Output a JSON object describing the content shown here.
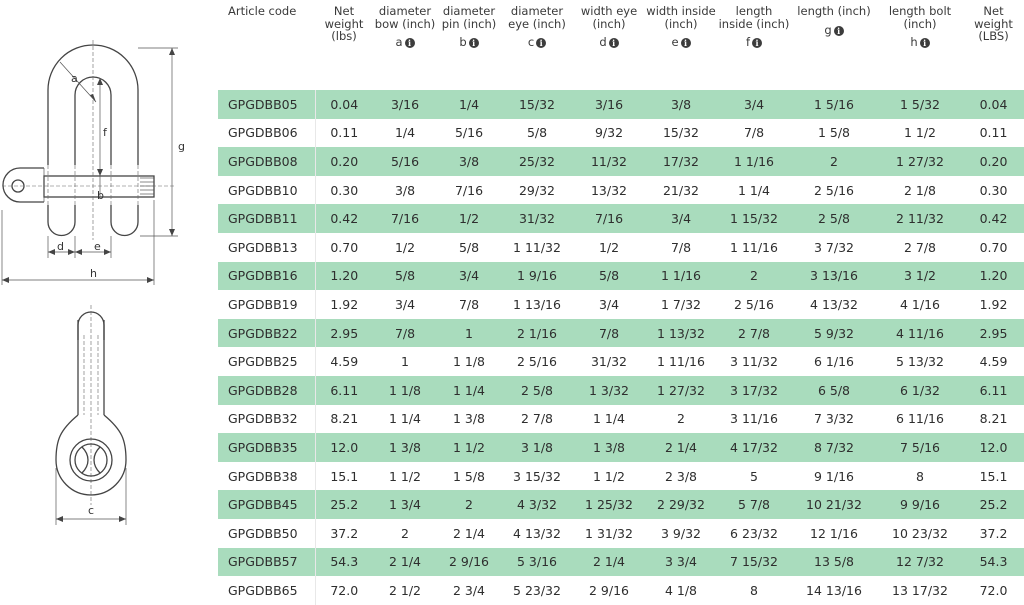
{
  "diagram": {
    "labels": {
      "a": "a",
      "b": "b",
      "c": "c",
      "d": "d",
      "e": "e",
      "f": "f",
      "g": "g",
      "h": "h"
    }
  },
  "table": {
    "columns": [
      {
        "label": "Article code",
        "symbol": ""
      },
      {
        "label": "Net weight (lbs)",
        "symbol": ""
      },
      {
        "label": "diameter bow (inch)",
        "symbol": "a"
      },
      {
        "label": "diameter pin (inch)",
        "symbol": "b"
      },
      {
        "label": "diameter eye (inch)",
        "symbol": "c"
      },
      {
        "label": "width eye (inch)",
        "symbol": "d"
      },
      {
        "label": "width inside (inch)",
        "symbol": "e"
      },
      {
        "label": "length inside (inch)",
        "symbol": "f"
      },
      {
        "label": "length (inch)",
        "symbol": "g"
      },
      {
        "label": "length bolt (inch)",
        "symbol": "h"
      },
      {
        "label": "Net weight (LBS)",
        "symbol": ""
      }
    ],
    "rows": [
      [
        "GPGDBB05",
        "0.04",
        "3/16",
        "1/4",
        "15/32",
        "3/16",
        "3/8",
        "3/4",
        "1 5/16",
        "1 5/32",
        "0.04"
      ],
      [
        "GPGDBB06",
        "0.11",
        "1/4",
        "5/16",
        "5/8",
        "9/32",
        "15/32",
        "7/8",
        "1 5/8",
        "1 1/2",
        "0.11"
      ],
      [
        "GPGDBB08",
        "0.20",
        "5/16",
        "3/8",
        "25/32",
        "11/32",
        "17/32",
        "1 1/16",
        "2",
        "1 27/32",
        "0.20"
      ],
      [
        "GPGDBB10",
        "0.30",
        "3/8",
        "7/16",
        "29/32",
        "13/32",
        "21/32",
        "1 1/4",
        "2 5/16",
        "2 1/8",
        "0.30"
      ],
      [
        "GPGDBB11",
        "0.42",
        "7/16",
        "1/2",
        "31/32",
        "7/16",
        "3/4",
        "1 15/32",
        "2 5/8",
        "2 11/32",
        "0.42"
      ],
      [
        "GPGDBB13",
        "0.70",
        "1/2",
        "5/8",
        "1 11/32",
        "1/2",
        "7/8",
        "1 11/16",
        "3 7/32",
        "2 7/8",
        "0.70"
      ],
      [
        "GPGDBB16",
        "1.20",
        "5/8",
        "3/4",
        "1 9/16",
        "5/8",
        "1 1/16",
        "2",
        "3 13/16",
        "3 1/2",
        "1.20"
      ],
      [
        "GPGDBB19",
        "1.92",
        "3/4",
        "7/8",
        "1 13/16",
        "3/4",
        "1 7/32",
        "2 5/16",
        "4 13/32",
        "4 1/16",
        "1.92"
      ],
      [
        "GPGDBB22",
        "2.95",
        "7/8",
        "1",
        "2 1/16",
        "7/8",
        "1 13/32",
        "2 7/8",
        "5 9/32",
        "4 11/16",
        "2.95"
      ],
      [
        "GPGDBB25",
        "4.59",
        "1",
        "1 1/8",
        "2 5/16",
        "31/32",
        "1 11/16",
        "3 11/32",
        "6 1/16",
        "5 13/32",
        "4.59"
      ],
      [
        "GPGDBB28",
        "6.11",
        "1 1/8",
        "1 1/4",
        "2 5/8",
        "1 3/32",
        "1 27/32",
        "3 17/32",
        "6 5/8",
        "6 1/32",
        "6.11"
      ],
      [
        "GPGDBB32",
        "8.21",
        "1 1/4",
        "1 3/8",
        "2 7/8",
        "1 1/4",
        "2",
        "3 11/16",
        "7 3/32",
        "6 11/16",
        "8.21"
      ],
      [
        "GPGDBB35",
        "12.0",
        "1 3/8",
        "1 1/2",
        "3 1/8",
        "1 3/8",
        "2 1/4",
        "4 17/32",
        "8 7/32",
        "7 5/16",
        "12.0"
      ],
      [
        "GPGDBB38",
        "15.1",
        "1 1/2",
        "1 5/8",
        "3 15/32",
        "1 1/2",
        "2 3/8",
        "5",
        "9 1/16",
        "8",
        "15.1"
      ],
      [
        "GPGDBB45",
        "25.2",
        "1 3/4",
        "2",
        "4 3/32",
        "1 25/32",
        "2 29/32",
        "5 7/8",
        "10 21/32",
        "9 9/16",
        "25.2"
      ],
      [
        "GPGDBB50",
        "37.2",
        "2",
        "2 1/4",
        "4 13/32",
        "1 31/32",
        "3 9/32",
        "6 23/32",
        "12 1/16",
        "10 23/32",
        "37.2"
      ],
      [
        "GPGDBB57",
        "54.3",
        "2 1/4",
        "2 9/16",
        "5 3/16",
        "2 1/4",
        "3 3/4",
        "7 15/32",
        "13 5/8",
        "12 7/32",
        "54.3"
      ],
      [
        "GPGDBB65",
        "72.0",
        "2 1/2",
        "2 3/4",
        "5 23/32",
        "2 9/16",
        "4 1/8",
        "8",
        "14 13/16",
        "13 17/32",
        "72.0"
      ]
    ],
    "info_icon_glyph": "i",
    "accent_color": "#a9dcbd"
  }
}
